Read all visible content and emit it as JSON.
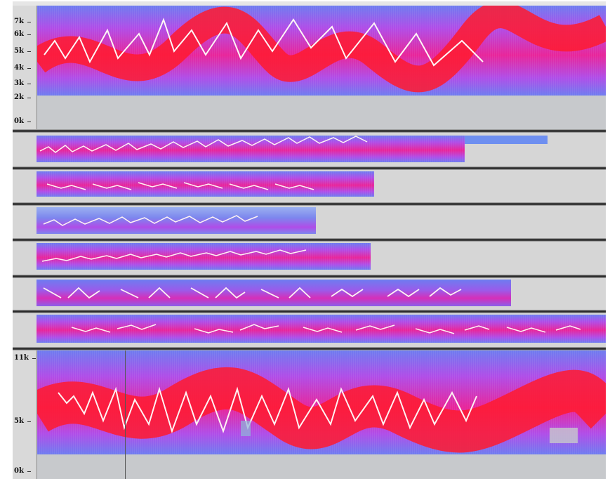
{
  "tracks": [
    {
      "ticks": [
        {
          "label": "7k"
        },
        {
          "label": "6k"
        },
        {
          "label": "5k"
        },
        {
          "label": "4k"
        },
        {
          "label": "3k"
        },
        {
          "label": "2k"
        },
        {
          "label": "0k"
        }
      ]
    },
    {
      "ticks": []
    },
    {
      "ticks": []
    },
    {
      "ticks": []
    },
    {
      "ticks": []
    },
    {
      "ticks": []
    },
    {
      "ticks": []
    },
    {
      "ticks": [
        {
          "label": "11k"
        },
        {
          "label": "5k"
        },
        {
          "label": "0k"
        }
      ]
    }
  ],
  "colors": {
    "spectrogram_low": "#6e7cf0",
    "spectrogram_mid": "#e8259a",
    "spectrogram_high": "#ff1a2e",
    "trace": "#ffffff",
    "background": "#d6d6d6"
  }
}
